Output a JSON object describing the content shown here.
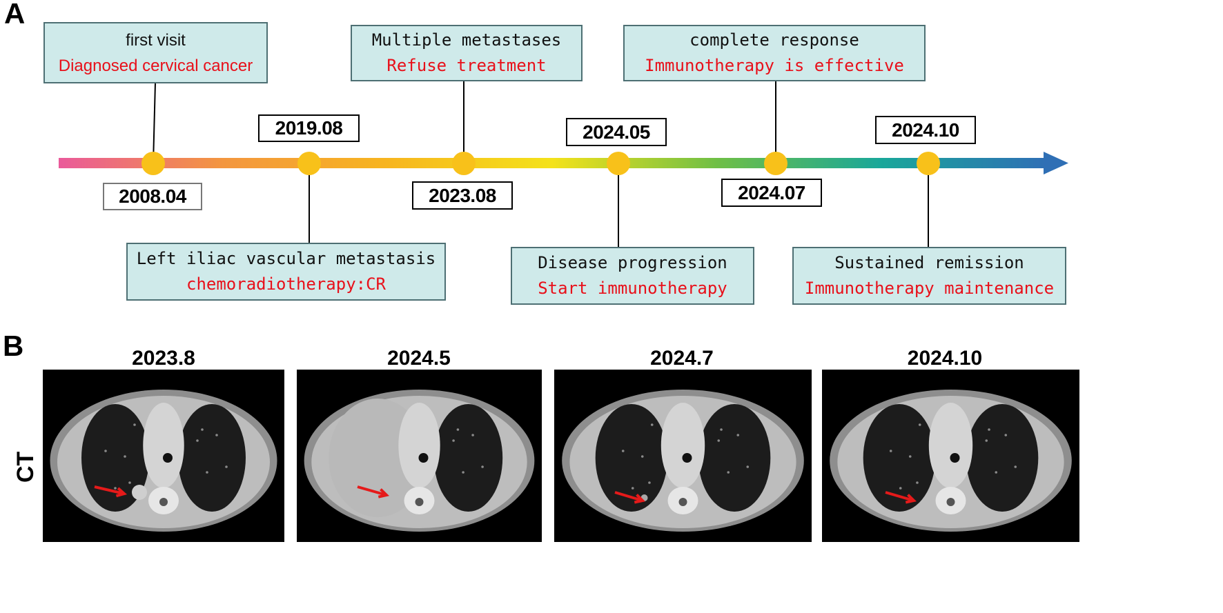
{
  "panels": {
    "a": "A",
    "b": "B"
  },
  "timeline": {
    "colors": {
      "arrow_gradient": [
        "#ea5a9a",
        "#f3963f",
        "#f7b51f",
        "#f4e21a",
        "#6fbf45",
        "#19a79a",
        "#2f6fb5"
      ],
      "marker": "#f8c11a",
      "box_fill": "#cfeaea",
      "box_border": "#4d6f73",
      "highlight_text": "#e8101a"
    },
    "dates": [
      "2008.04",
      "2019.08",
      "2023.08",
      "2024.05",
      "2024.07",
      "2024.10"
    ],
    "events": [
      {
        "line1": "first visit",
        "line2": "Diagnosed cervical cancer"
      },
      {
        "line1": "Left iliac vascular metastasis",
        "line2": "chemoradiotherapy:CR"
      },
      {
        "line1": "Multiple metastases",
        "line2": "Refuse treatment"
      },
      {
        "line1": "Disease progression",
        "line2": "Start immunotherapy"
      },
      {
        "line1": "complete response",
        "line2": "Immunotherapy is effective"
      },
      {
        "line1": "Sustained remission",
        "line2": "Immunotherapy maintenance"
      }
    ]
  },
  "ct": {
    "row_label": "CT",
    "arrow_color": "#e51a1a",
    "scans": [
      {
        "date": "2023.8",
        "finding": "right lung nodule"
      },
      {
        "date": "2024.5",
        "finding": "right pleural effusion"
      },
      {
        "date": "2024.7",
        "finding": "lesion shrinkage"
      },
      {
        "date": "2024.10",
        "finding": "sustained remission"
      }
    ]
  }
}
